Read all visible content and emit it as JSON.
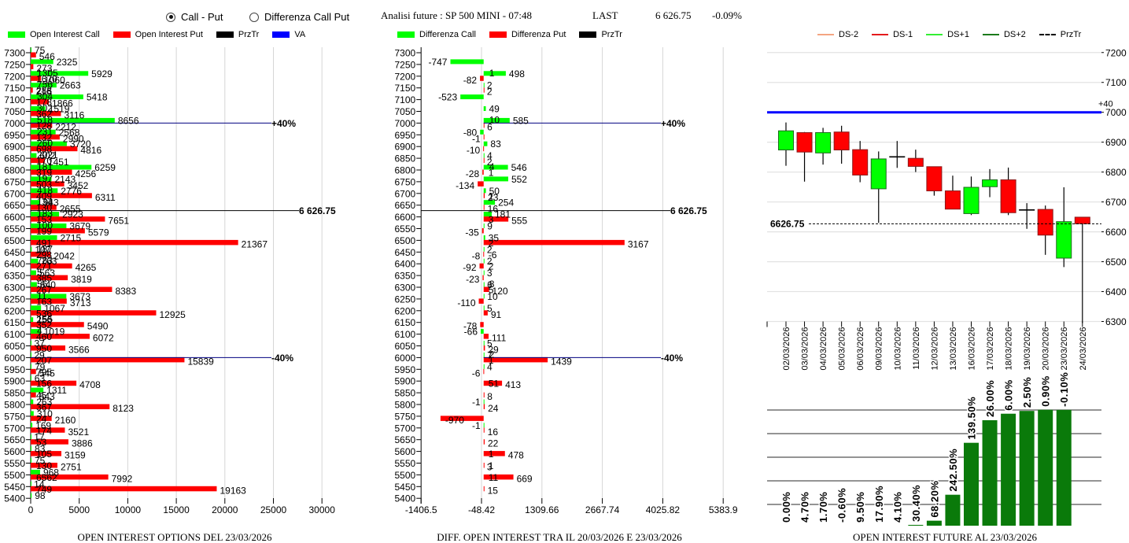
{
  "header": {
    "view_options": [
      {
        "label": "Call - Put",
        "selected": true
      },
      {
        "label": "Differenza Call Put",
        "selected": false
      }
    ],
    "title": "Analisi future : SP 500 MINI - 07:48",
    "last_label": "LAST",
    "last_value": "6 626.75",
    "last_change": "-0.09%"
  },
  "chart_data": [
    {
      "type": "bar",
      "orientation": "horizontal",
      "title": "OPEN INTEREST OPTIONS DEL 23/03/2026",
      "legend_position": "top-left",
      "legend": [
        {
          "label": "Open Interest Call",
          "color": "#00ff00"
        },
        {
          "label": "Open Interest Put",
          "color": "#ff0000"
        },
        {
          "label": "PrzTr",
          "color": "#000000"
        },
        {
          "label": "VA",
          "color": "#0000ff"
        }
      ],
      "ylabel": "Strike",
      "categories": [
        7300,
        7250,
        7200,
        7150,
        7100,
        7050,
        7000,
        6950,
        6900,
        6850,
        6800,
        6750,
        6700,
        6650,
        6600,
        6550,
        6500,
        6450,
        6400,
        6350,
        6300,
        6250,
        6200,
        6150,
        6100,
        6050,
        6000,
        5950,
        5900,
        5850,
        5800,
        5750,
        5700,
        5650,
        5600,
        5550,
        5500,
        5450,
        5400
      ],
      "series": [
        {
          "name": "Open Interest Call",
          "color": "#00ff00",
          "values": [
            75,
            2325,
            5929,
            2663,
            5418,
            1519,
            8656,
            2568,
            3720,
            602,
            6259,
            2143,
            2776,
            943,
            2923,
            3679,
            2715,
            107,
            763,
            563,
            640,
            3673,
            1067,
            256,
            1019,
            37,
            29,
            79,
            63,
            1311,
            263,
            310,
            169,
            17,
            83,
            75,
            968,
            14,
            98
          ],
          "notes": [
            "",
            "",
            "1305",
            "756",
            "304",
            "302",
            "518",
            "231",
            "260",
            "2021",
            "181",
            "197",
            "418",
            "134",
            "183",
            "100",
            "",
            "187",
            "783",
            "5",
            "56",
            "11",
            "",
            "155",
            "4",
            "",
            "",
            "",
            "",
            "",
            "",
            "",
            "",
            "",
            "",
            "",
            "",
            "",
            ""
          ]
        },
        {
          "name": "Open Interest Put",
          "color": "#ff0000",
          "values": [
            546,
            273,
            1060,
            216,
            1866,
            3116,
            2212,
            2990,
            4816,
            1451,
            4256,
            3452,
            6311,
            2655,
            7651,
            5579,
            21367,
            2042,
            4265,
            3819,
            8383,
            3713,
            12925,
            5490,
            6072,
            3566,
            15839,
            545,
            4708,
            543,
            8123,
            2160,
            3521,
            3886,
            3159,
            2751,
            7992,
            19163,
            null
          ],
          "notes": [
            "",
            "",
            "1670",
            "288",
            "178",
            "362",
            "128",
            "132",
            "698",
            "170",
            "319",
            "503",
            "409",
            "130",
            "153",
            "199",
            "491",
            "298",
            "271",
            "385",
            "267",
            "163",
            "536",
            "352",
            "460",
            "950",
            "207",
            "795",
            "156",
            "45",
            "367",
            "24",
            "174",
            "53",
            "105",
            "130",
            "6562",
            "749",
            ""
          ]
        }
      ],
      "xticks": [
        "0",
        "5000",
        "10000",
        "15000",
        "20000",
        "25000",
        "30000"
      ],
      "xlim": [
        0,
        30000
      ],
      "grid": "vertical",
      "price_line": {
        "name": "PrzTr",
        "value": 6626.75,
        "label": "6 626.75",
        "color": "#000000"
      },
      "va_lines": [
        {
          "value": 7000,
          "label": "+40%",
          "color": "#000080"
        },
        {
          "value": 6000,
          "label": "-40%",
          "color": "#000080"
        }
      ]
    },
    {
      "type": "bar",
      "orientation": "horizontal",
      "title": "DIFF. OPEN INTEREST TRA IL 20/03/2026 E 23/03/2026",
      "legend_position": "top-left",
      "legend": [
        {
          "label": "Differenza Call",
          "color": "#00ff00"
        },
        {
          "label": "Differenza Put",
          "color": "#ff0000"
        },
        {
          "label": "PrzTr",
          "color": "#000000"
        }
      ],
      "ylabel": "Strike",
      "categories": [
        7300,
        7250,
        7200,
        7150,
        7100,
        7050,
        7000,
        6950,
        6900,
        6850,
        6800,
        6750,
        6700,
        6650,
        6600,
        6550,
        6500,
        6450,
        6400,
        6350,
        6300,
        6250,
        6200,
        6150,
        6100,
        6050,
        6000,
        5950,
        5900,
        5850,
        5800,
        5750,
        5700,
        5650,
        5600,
        5550,
        5500,
        5450,
        5400
      ],
      "series": [
        {
          "name": "Differenza Call",
          "color": "#00ff00",
          "values": [
            null,
            -747,
            498,
            2,
            -523,
            49,
            585,
            -80,
            83,
            4,
            546,
            552,
            50,
            254,
            181,
            9,
            35,
            2,
            2,
            3,
            6,
            10,
            5,
            null,
            -66,
            5,
            7,
            4,
            null,
            null,
            -1,
            null,
            -1,
            null,
            null,
            null,
            null,
            null,
            null
          ],
          "notes": [
            "",
            "",
            "1",
            "",
            "",
            "",
            "10",
            "",
            "",
            "",
            "4",
            "",
            "",
            "",
            "",
            "",
            "",
            "",
            "",
            "",
            "8",
            "",
            "",
            "",
            "",
            "",
            "2",
            "",
            "",
            "",
            "",
            "",
            "",
            "",
            "",
            "",
            "",
            "",
            ""
          ]
        },
        {
          "name": "Differenza Put",
          "color": "#ff0000",
          "values": [
            null,
            null,
            -82,
            2,
            null,
            null,
            6,
            -1,
            -10,
            2,
            -28,
            -134,
            23,
            16,
            555,
            -35,
            3167,
            -8,
            -92,
            -23,
            120,
            -110,
            91,
            -78,
            111,
            29,
            1439,
            -6,
            413,
            8,
            24,
            -970,
            16,
            22,
            478,
            3,
            669,
            15,
            null
          ],
          "notes": [
            "",
            "",
            "",
            "",
            "",
            "",
            "",
            "",
            "",
            "",
            "1",
            "",
            "1",
            "",
            "3",
            "",
            "2",
            "-6",
            "2",
            "",
            "5",
            "",
            "",
            "",
            "",
            "",
            "1",
            "",
            "51",
            "",
            "",
            "",
            "",
            "",
            "1",
            "1",
            "11",
            "",
            ""
          ]
        }
      ],
      "xticks": [
        "-1406.5",
        "-48.42",
        "1309.66",
        "2667.74",
        "4025.82",
        "5383.9"
      ],
      "xlim": [
        -1406.5,
        5383.9
      ],
      "grid": "vertical",
      "price_line": {
        "name": "PrzTr",
        "value": 6626.75,
        "label": "6 626.75",
        "color": "#000000"
      },
      "va_lines": [
        {
          "value": 7000,
          "label": "+40%",
          "color": "#000080"
        },
        {
          "value": 6000,
          "label": "-40%",
          "color": "#000080"
        }
      ]
    },
    {
      "type": "candlestick",
      "legend_position": "top",
      "legend": [
        {
          "label": "DS-2",
          "color": "#f4a582",
          "style": "solid"
        },
        {
          "label": "DS-1",
          "color": "#e41a1c",
          "style": "solid"
        },
        {
          "label": "DS+1",
          "color": "#33ee33",
          "style": "solid"
        },
        {
          "label": "DS+2",
          "color": "#1b7a1b",
          "style": "solid"
        },
        {
          "label": "PrzTr",
          "color": "#000000",
          "style": "dashed"
        }
      ],
      "x": [
        "02/03/2026",
        "03/03/2026",
        "04/03/2026",
        "05/03/2026",
        "06/03/2026",
        "09/03/2026",
        "10/03/2026",
        "11/03/2026",
        "12/03/2026",
        "13/03/2026",
        "16/03/2026",
        "17/03/2026",
        "18/03/2026",
        "19/03/2026",
        "20/03/2026",
        "23/03/2026",
        "24/03/2026"
      ],
      "open": [
        6874,
        6932,
        6864,
        6934,
        6875,
        6744,
        6851,
        6846,
        6818,
        6737,
        6661,
        6751,
        6774,
        6673,
        6675,
        6512,
        6649
      ],
      "high": [
        6966,
        6934,
        6948,
        6955,
        6904,
        6869,
        6904,
        6875,
        6818,
        6788,
        6785,
        6810,
        6815,
        6696,
        6688,
        6749,
        6649
      ],
      "low": [
        6821,
        6768,
        6825,
        6828,
        6766,
        6630,
        6814,
        6800,
        6721,
        6676,
        6656,
        6716,
        6656,
        6610,
        6523,
        6482,
        6290
      ],
      "close": [
        6938,
        6867,
        6932,
        6874,
        6790,
        6844,
        6851,
        6819,
        6737,
        6676,
        6749,
        6774,
        6664,
        6673,
        6589,
        6634,
        6627
      ],
      "yticks": [
        7200,
        7100,
        7000,
        6900,
        6800,
        6700,
        6600,
        6500,
        6400,
        6300
      ],
      "ylim": [
        6300,
        7200
      ],
      "y_axis_position": "right",
      "grid": "horizontal",
      "up_color": "#00ff00",
      "down_color": "#ff0000",
      "va_line": {
        "value": 7000,
        "label": "+40",
        "color": "#0000ff"
      },
      "price_line": {
        "name": "PrzTr",
        "value": 6626.75,
        "label": "6626.75",
        "color": "#000000",
        "style": "dashed"
      }
    },
    {
      "type": "bar",
      "title": "OPEN INTEREST FUTURE AL 23/03/2026",
      "categories": [
        "02/03/2026",
        "03/03/2026",
        "04/03/2026",
        "05/03/2026",
        "06/03/2026",
        "09/03/2026",
        "10/03/2026",
        "11/03/2026",
        "12/03/2026",
        "13/03/2026",
        "16/03/2026",
        "17/03/2026",
        "18/03/2026",
        "19/03/2026",
        "20/03/2026",
        "23/03/2026"
      ],
      "values_relative": [
        0,
        0,
        0,
        0,
        0,
        0,
        0,
        0.007,
        0.043,
        0.267,
        0.715,
        0.91,
        0.966,
        0.99,
        1.0,
        0.999
      ],
      "labels": [
        "0.00%",
        "4.70%",
        "1.70%",
        "-0.60%",
        "9.50%",
        "17.90%",
        "4.10%",
        "30.40%",
        "68.20%",
        "242.50%",
        "139.50%",
        "26.00%",
        "6.00%",
        "2.50%",
        "0.90%",
        "-0.10%"
      ],
      "color": "#0a7a0a",
      "grid": "horizontal"
    }
  ]
}
